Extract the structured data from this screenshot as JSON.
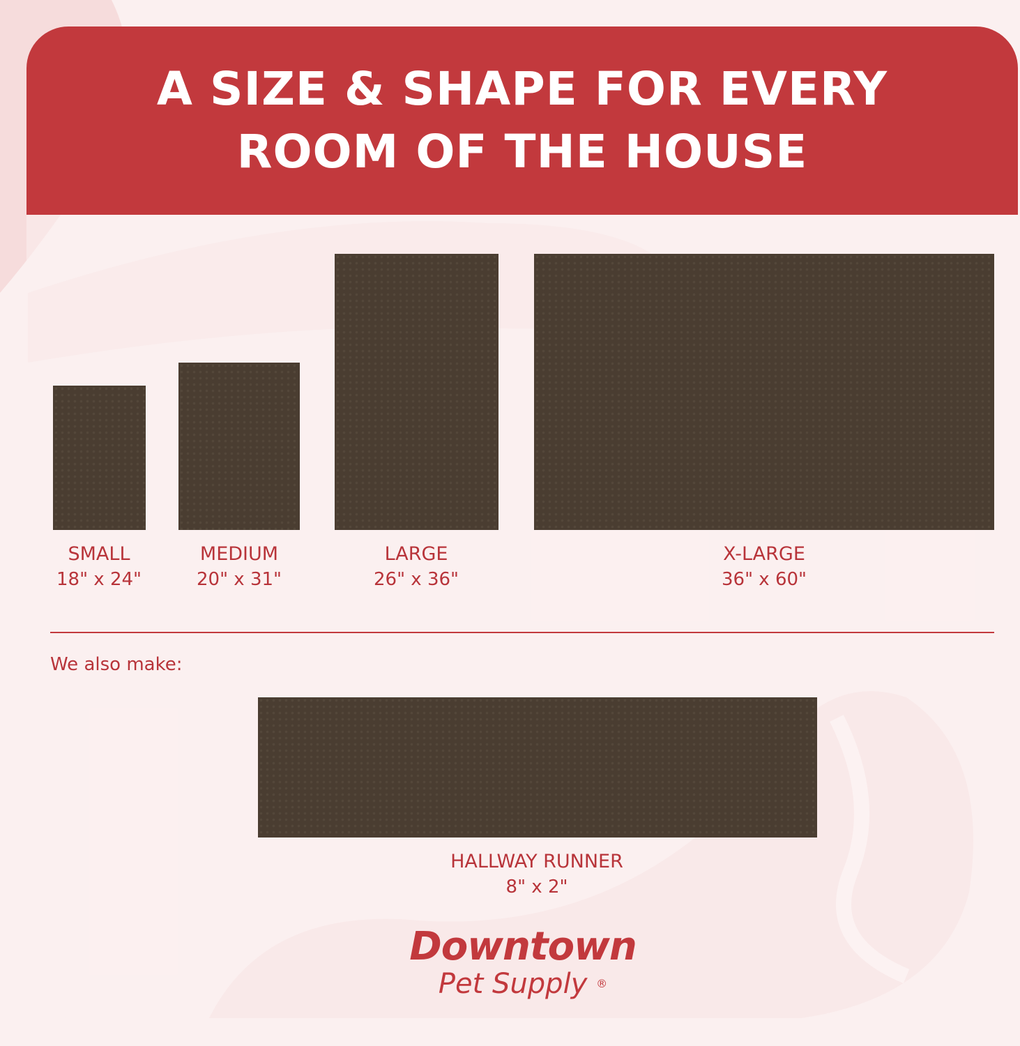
{
  "header": {
    "title_line1": "A SIZE & SHAPE FOR EVERY",
    "title_line2": "ROOM OF THE HOUSE"
  },
  "sizes": [
    {
      "name": "SMALL",
      "dimensions": "18\" x 24\""
    },
    {
      "name": "MEDIUM",
      "dimensions": "20\" x 31\""
    },
    {
      "name": "LARGE",
      "dimensions": "26\" x 36\""
    },
    {
      "name": "X-LARGE",
      "dimensions": "36\" x 60\""
    }
  ],
  "also": {
    "label": "We also make:",
    "name": "HALLWAY RUNNER",
    "dimensions": "8\" x 2\""
  },
  "logo": {
    "line1": "Downtown",
    "line2": "Pet Supply",
    "mark": "®"
  },
  "colors": {
    "brand_red": "#c2393d",
    "mat": "#4a3d31",
    "background": "#fbf0f0"
  }
}
